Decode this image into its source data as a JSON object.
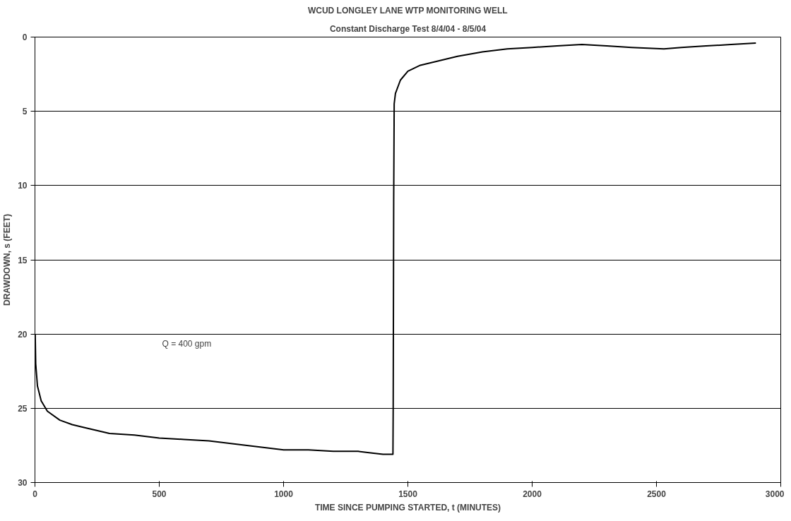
{
  "chart_data": {
    "type": "line",
    "title": "WCUD LONGLEY LANE WTP MONITORING WELL",
    "subtitle": "Constant Discharge Test 8/4/04 - 8/5/04",
    "xlabel": "TIME SINCE PUMPING STARTED, t (MINUTES)",
    "ylabel": "DRAWDOWN, s (FEET)",
    "annotations": [
      "Q = 400 gpm"
    ],
    "xlim": [
      0,
      3000
    ],
    "xticks": [
      0,
      500,
      1000,
      1500,
      2000,
      2500,
      3000
    ],
    "ylim": [
      30,
      0
    ],
    "yticks": [
      0,
      5,
      10,
      15,
      20,
      25,
      30
    ],
    "grid": "y",
    "marker": "none",
    "line_style": "solid",
    "series": [
      {
        "color": "#000000",
        "x": [
          1,
          3,
          10,
          25,
          50,
          100,
          150,
          200,
          300,
          400,
          500,
          600,
          700,
          800,
          900,
          1000,
          1100,
          1200,
          1300,
          1350,
          1400,
          1440,
          1441,
          1443,
          1445,
          1450,
          1470,
          1500,
          1550,
          1600,
          1700,
          1800,
          1900,
          2000,
          2100,
          2200,
          2300,
          2400,
          2530,
          2600,
          2700,
          2800,
          2900
        ],
        "values": [
          20,
          22,
          23.5,
          24.5,
          25.2,
          25.8,
          26.1,
          26.3,
          26.7,
          26.8,
          27.0,
          27.1,
          27.2,
          27.4,
          27.6,
          27.8,
          27.8,
          27.9,
          27.9,
          28.0,
          28.1,
          28.1,
          25,
          11,
          4.5,
          3.8,
          2.9,
          2.3,
          1.9,
          1.7,
          1.3,
          1.0,
          0.8,
          0.7,
          0.6,
          0.5,
          0.6,
          0.7,
          0.8,
          0.7,
          0.6,
          0.5,
          0.4
        ]
      }
    ]
  }
}
